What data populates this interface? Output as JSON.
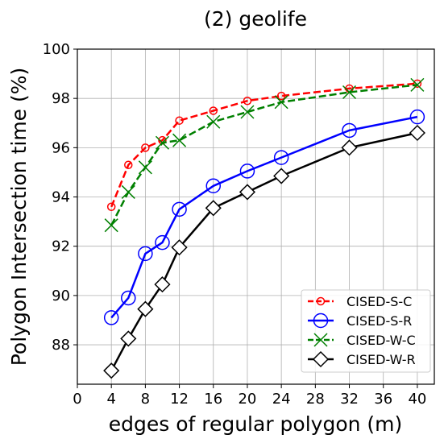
{
  "chart_data": {
    "type": "line",
    "title": "(2) geolife",
    "xlabel": "edges of regular polygon (m)",
    "ylabel": "Polygon Intersection time (%)",
    "xlim": [
      0,
      42
    ],
    "ylim": [
      86.4,
      100
    ],
    "xticks": [
      0,
      4,
      8,
      12,
      16,
      20,
      24,
      28,
      32,
      36,
      40
    ],
    "yticks": [
      88,
      90,
      92,
      94,
      96,
      98,
      100
    ],
    "grid": true,
    "legend_position": "lower-right",
    "series": [
      {
        "name": "CISED-S-C",
        "color": "#ff0000",
        "line_style": "dashed",
        "marker": "circle-small",
        "x": [
          4,
          6,
          8,
          10,
          12,
          16,
          20,
          24,
          32,
          40
        ],
        "y": [
          93.6,
          95.3,
          96.0,
          96.3,
          97.1,
          97.5,
          97.9,
          98.1,
          98.4,
          98.6
        ]
      },
      {
        "name": "CISED-S-R",
        "color": "#0000ff",
        "line_style": "solid",
        "marker": "circle-large",
        "x": [
          4,
          6,
          8,
          10,
          12,
          16,
          20,
          24,
          32,
          40
        ],
        "y": [
          89.1,
          89.9,
          91.7,
          92.15,
          93.5,
          94.45,
          95.05,
          95.6,
          96.7,
          97.25
        ]
      },
      {
        "name": "CISED-W-C",
        "color": "#008000",
        "line_style": "dashed",
        "marker": "x",
        "x": [
          4,
          6,
          8,
          10,
          12,
          16,
          20,
          24,
          32,
          40
        ],
        "y": [
          92.85,
          94.2,
          95.2,
          96.2,
          96.3,
          97.05,
          97.45,
          97.85,
          98.25,
          98.55
        ]
      },
      {
        "name": "CISED-W-R",
        "color": "#000000",
        "line_style": "solid",
        "marker": "diamond",
        "x": [
          4,
          6,
          8,
          10,
          12,
          16,
          20,
          24,
          32,
          40
        ],
        "y": [
          86.95,
          88.25,
          89.45,
          90.45,
          91.95,
          93.55,
          94.2,
          94.85,
          96.0,
          96.6
        ]
      }
    ]
  }
}
